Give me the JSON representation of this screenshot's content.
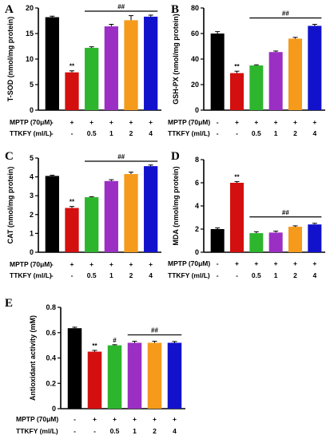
{
  "row_labels": {
    "mptp": "MPTP (70μM)",
    "mptp_alt": "MPTP (70μM)",
    "ttkfy": "TTKFY (ml/L)"
  },
  "mptp_row": [
    "-",
    "+",
    "+",
    "+",
    "+",
    "+"
  ],
  "ttkfy_row": [
    "-",
    "-",
    "0.5",
    "1",
    "2",
    "4"
  ],
  "series_colors": [
    "#000000",
    "#d40f0f",
    "#2eb52e",
    "#9b2fc4",
    "#f59a1a",
    "#1212cc"
  ],
  "chart_data": [
    {
      "type": "bar",
      "panel": "A",
      "ylabel": "T-SOD (nmol/mg protein)",
      "ylim": [
        0,
        20
      ],
      "yticks": [
        0,
        5,
        10,
        15,
        20
      ],
      "values": [
        18.2,
        7.4,
        12.2,
        16.4,
        17.6,
        18.3
      ],
      "errors": [
        0.2,
        0.3,
        0.2,
        0.4,
        0.9,
        0.3
      ],
      "annotations": [
        {
          "bar": 1,
          "text": "**"
        },
        {
          "bar_range": [
            2,
            5
          ],
          "text": "##"
        }
      ]
    },
    {
      "type": "bar",
      "panel": "B",
      "ylabel": "GSH-PX (nmol/mg protein)",
      "ylim": [
        0,
        80
      ],
      "yticks": [
        0,
        20,
        40,
        60,
        80
      ],
      "values": [
        60,
        29,
        35,
        45.5,
        56,
        66
      ],
      "errors": [
        1.5,
        1.5,
        0.5,
        0.8,
        1.0,
        1.2
      ],
      "annotations": [
        {
          "bar": 1,
          "text": "**"
        },
        {
          "bar_range": [
            2,
            5
          ],
          "text": "##"
        }
      ]
    },
    {
      "type": "bar",
      "panel": "C",
      "ylabel": "CAT (nmol/mg protein)",
      "ylim": [
        0,
        5
      ],
      "yticks": [
        0,
        1,
        2,
        3,
        4,
        5
      ],
      "values": [
        4.05,
        2.35,
        2.92,
        3.78,
        4.15,
        4.57
      ],
      "errors": [
        0.04,
        0.08,
        0.03,
        0.07,
        0.1,
        0.06
      ],
      "annotations": [
        {
          "bar": 1,
          "text": "**"
        },
        {
          "bar_range": [
            2,
            5
          ],
          "text": "##"
        }
      ]
    },
    {
      "type": "bar",
      "panel": "D",
      "ylabel": "MDA (nmol/mg protein)",
      "ylim": [
        0,
        8
      ],
      "yticks": [
        0,
        2,
        4,
        6,
        8
      ],
      "values": [
        2.0,
        6.0,
        1.65,
        1.7,
        2.2,
        2.4
      ],
      "errors": [
        0.1,
        0.1,
        0.12,
        0.12,
        0.08,
        0.1
      ],
      "annotations": [
        {
          "bar": 1,
          "text": "**"
        },
        {
          "bar_range": [
            2,
            5
          ],
          "text": "##"
        }
      ]
    },
    {
      "type": "bar",
      "panel": "E",
      "ylabel": "Antioxidant activity (mM)",
      "ylim": [
        0,
        0.8
      ],
      "yticks": [
        0,
        0.2,
        0.4,
        0.6,
        0.8
      ],
      "values": [
        0.635,
        0.45,
        0.5,
        0.52,
        0.52,
        0.52
      ],
      "errors": [
        0.008,
        0.01,
        0.005,
        0.012,
        0.012,
        0.01
      ],
      "annotations": [
        {
          "bar": 1,
          "text": "**"
        },
        {
          "bar": 2,
          "text": "#"
        },
        {
          "bar_range": [
            3,
            5
          ],
          "text": "##"
        }
      ]
    }
  ]
}
